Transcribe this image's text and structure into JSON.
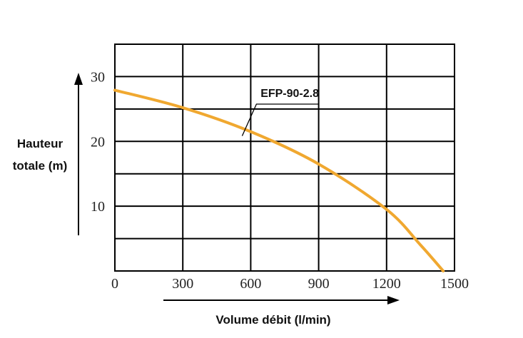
{
  "chart_data": {
    "type": "line",
    "ylabel_lines": [
      "Hauteur",
      "totale (m)"
    ],
    "xlabel": "Volume débit (l/min)",
    "xlim": [
      0,
      1500
    ],
    "ylim": [
      0,
      35
    ],
    "x_ticks": [
      0,
      300,
      600,
      900,
      1200,
      1500
    ],
    "x_tick_labels": [
      "0",
      "300",
      "600",
      "900",
      "1200",
      "1500"
    ],
    "y_ticks": [
      10,
      20,
      30
    ],
    "y_tick_labels": [
      "10",
      "20",
      "30"
    ],
    "grid": true,
    "x_gridlines": [
      300,
      600,
      900,
      1200
    ],
    "y_gridlines": [
      5,
      10,
      15,
      20,
      25,
      30
    ],
    "series": [
      {
        "name": "EFP-90-2.8",
        "color": "#f0a830",
        "x": [
          0,
          300,
          600,
          900,
          1200,
          1350,
          1450
        ],
        "y": [
          27.9,
          25.2,
          21.5,
          16.5,
          9.5,
          4.0,
          0
        ]
      }
    ],
    "annotation": {
      "text": "EFP-90-2.8",
      "point_x": 600,
      "point_y": 21.5
    }
  }
}
